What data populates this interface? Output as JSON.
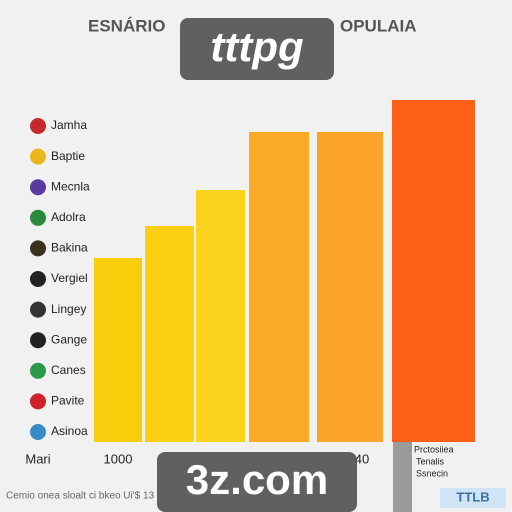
{
  "chart_data": {
    "type": "bar",
    "title_parts": [
      "ESNÁRIO",
      "OPULAIA"
    ],
    "values": [
      184,
      216,
      252,
      310,
      310,
      342
    ],
    "colors": [
      "#f9cd0b",
      "#fbd012",
      "#fcd31c",
      "#fbaa26",
      "#fca42a",
      "#fc6016"
    ],
    "ylim": [
      0,
      342
    ],
    "legend": [
      {
        "name": "Jamha",
        "color": "#c42a2c"
      },
      {
        "name": "Baptie",
        "color": "#e8b81c"
      },
      {
        "name": "Mecnla",
        "color": "#5a3aa0"
      },
      {
        "name": "Adolra",
        "color": "#2a8a3a"
      },
      {
        "name": "Bakina",
        "color": "#3a3020"
      },
      {
        "name": "Vergiel",
        "color": "#222222"
      },
      {
        "name": "Lingey",
        "color": "#333333"
      },
      {
        "name": "Gange",
        "color": "#222222"
      },
      {
        "name": "Canes",
        "color": "#2a9a4a"
      },
      {
        "name": "Pavite",
        "color": "#d0202a"
      },
      {
        "name": "Asinoa",
        "color": "#3a8ac8"
      }
    ],
    "x_labels": [
      "Mari",
      "1000",
      "40"
    ],
    "footer": "Cemio onea sloalt ci bkeo Ui'$ 13",
    "side_note": [
      "Prctosiiea",
      "Tenalis",
      "Ssnecin"
    ],
    "logo": "TTLB",
    "watermarks": [
      "tttpg",
      "3z.com"
    ]
  }
}
